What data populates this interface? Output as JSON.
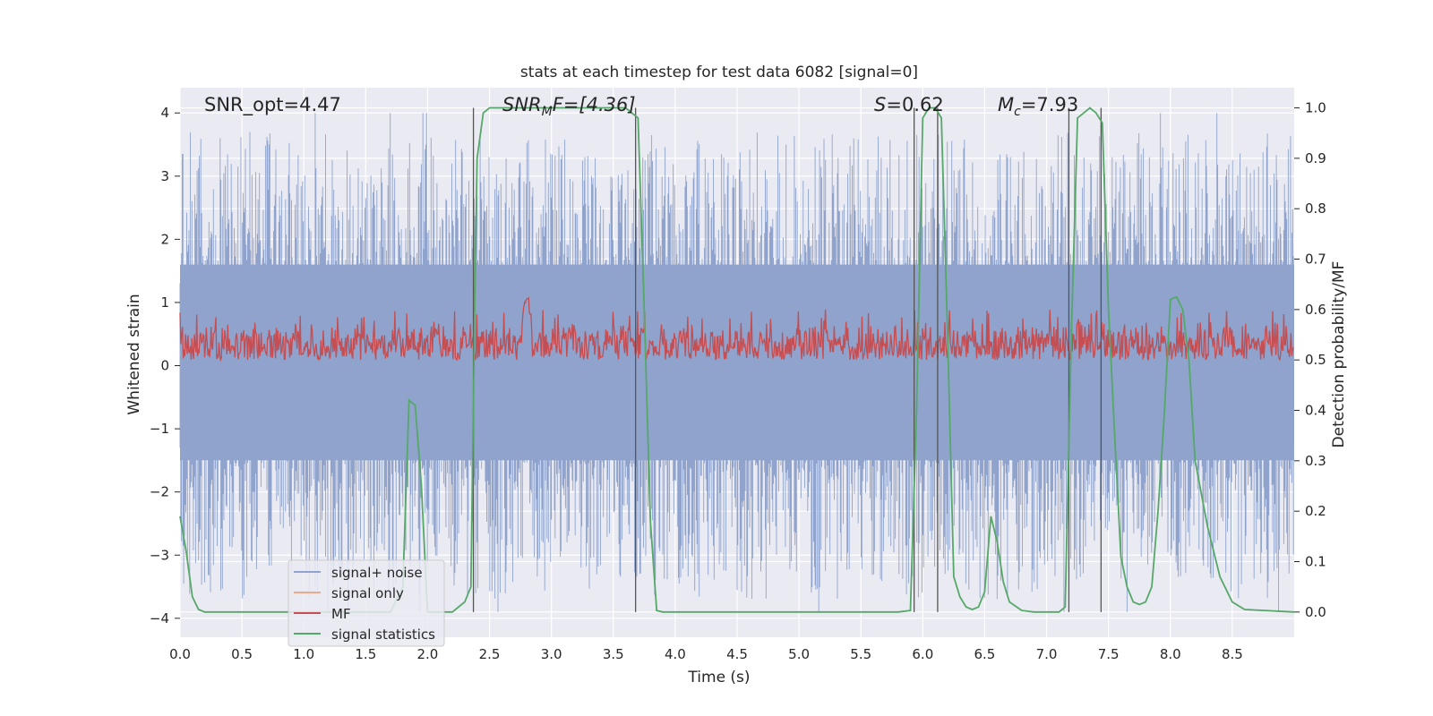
{
  "chart_data": {
    "type": "line",
    "title": "stats at each timestep for test data 6082 [signal=0]",
    "xlabel": "Time (s)",
    "ylabel_left": "Whitened strain",
    "ylabel_right": "Detection probability/MF",
    "xlim": [
      0,
      9
    ],
    "ylim_left": [
      -4.3,
      4.4
    ],
    "ylim_right": [
      -0.05,
      1.04
    ],
    "x_ticks": [
      "0.0",
      "0.5",
      "1.0",
      "1.5",
      "2.0",
      "2.5",
      "3.0",
      "3.5",
      "4.0",
      "4.5",
      "5.0",
      "5.5",
      "6.0",
      "6.5",
      "7.0",
      "7.5",
      "8.0",
      "8.5"
    ],
    "x_tick_values": [
      0,
      0.5,
      1,
      1.5,
      2,
      2.5,
      3,
      3.5,
      4,
      4.5,
      5,
      5.5,
      6,
      6.5,
      7,
      7.5,
      8,
      8.5
    ],
    "y_ticks_left": [
      "4",
      "3",
      "2",
      "1",
      "0",
      "−1",
      "−2",
      "−3",
      "−4"
    ],
    "y_tick_values_left": [
      4,
      3,
      2,
      1,
      0,
      -1,
      -2,
      -3,
      -4
    ],
    "y_ticks_right": [
      "1.0",
      "0.9",
      "0.8",
      "0.7",
      "0.6",
      "0.5",
      "0.4",
      "0.3",
      "0.2",
      "0.1",
      "0.0"
    ],
    "y_tick_values_right": [
      1.0,
      0.9,
      0.8,
      0.7,
      0.6,
      0.5,
      0.4,
      0.3,
      0.2,
      0.1,
      0.0
    ],
    "grid": true,
    "legend_position": "lower-left",
    "annotations": {
      "snr_opt": "SNR_opt=4.47",
      "snr_mf_main": "SNR",
      "snr_mf_sub": "M",
      "snr_mf_rest": "F=[4.36]",
      "s_main": "S",
      "s_rest": "=0.62",
      "mc_main": "M",
      "mc_sub": "c",
      "mc_rest": "=7.93"
    },
    "colors": {
      "signal_noise": "#8fa3cc",
      "signal_only": "#eea98d",
      "mf": "#c44e52",
      "signal_statistics": "#55a868",
      "vlines": "#555555",
      "background": "#eaeaf2",
      "grid": "#ffffff"
    },
    "series": [
      {
        "name": "signal+ noise",
        "axis": "left",
        "description_type": "noise",
        "envelope_upper": 1.6,
        "envelope_lower": -1.5,
        "peak_max": 4.0,
        "peak_min": -3.9
      },
      {
        "name": "signal only",
        "axis": "left",
        "values": []
      },
      {
        "name": "MF",
        "axis": "right",
        "baseline": 0.53,
        "band": [
          0.5,
          0.58
        ],
        "peak": {
          "x": 2.8,
          "y": 0.625
        }
      },
      {
        "name": "signal statistics",
        "axis": "right",
        "x": [
          0.0,
          0.05,
          0.1,
          0.15,
          0.2,
          0.3,
          0.5,
          1.0,
          1.5,
          1.7,
          1.8,
          1.85,
          1.9,
          1.95,
          2.0,
          2.1,
          2.2,
          2.3,
          2.35,
          2.38,
          2.4,
          2.45,
          2.5,
          3.0,
          3.6,
          3.65,
          3.7,
          3.75,
          3.8,
          3.85,
          3.9,
          4.0,
          5.0,
          5.8,
          5.9,
          5.95,
          6.0,
          6.05,
          6.1,
          6.15,
          6.2,
          6.25,
          6.3,
          6.35,
          6.4,
          6.45,
          6.5,
          6.55,
          6.6,
          6.65,
          6.7,
          6.8,
          6.9,
          7.0,
          7.1,
          7.15,
          7.2,
          7.25,
          7.3,
          7.35,
          7.4,
          7.45,
          7.5,
          7.55,
          7.6,
          7.65,
          7.7,
          7.75,
          7.8,
          7.85,
          7.9,
          7.95,
          8.0,
          8.05,
          8.1,
          8.15,
          8.2,
          8.3,
          8.4,
          8.5,
          8.6,
          9.0
        ],
        "y": [
          0.19,
          0.12,
          0.03,
          0.005,
          0.0,
          0.0,
          0.0,
          0.0,
          0.0,
          0.0,
          0.05,
          0.42,
          0.41,
          0.25,
          0.0,
          0.0,
          0.0,
          0.02,
          0.05,
          0.6,
          0.9,
          0.99,
          1.0,
          1.0,
          1.0,
          0.99,
          0.98,
          0.6,
          0.18,
          0.003,
          0.0,
          0.0,
          0.0,
          0.0,
          0.003,
          0.4,
          0.98,
          1.0,
          1.0,
          0.98,
          0.55,
          0.07,
          0.03,
          0.01,
          0.005,
          0.01,
          0.04,
          0.19,
          0.14,
          0.06,
          0.02,
          0.003,
          0.0,
          0.0,
          0.0,
          0.01,
          0.55,
          0.98,
          0.99,
          1.0,
          0.99,
          0.97,
          0.6,
          0.35,
          0.11,
          0.05,
          0.02,
          0.015,
          0.02,
          0.05,
          0.2,
          0.39,
          0.62,
          0.625,
          0.6,
          0.5,
          0.3,
          0.17,
          0.07,
          0.02,
          0.005,
          0.0
        ]
      }
    ],
    "vertical_lines_x": [
      2.37,
      3.68,
      5.93,
      6.12,
      7.18,
      7.44
    ]
  }
}
